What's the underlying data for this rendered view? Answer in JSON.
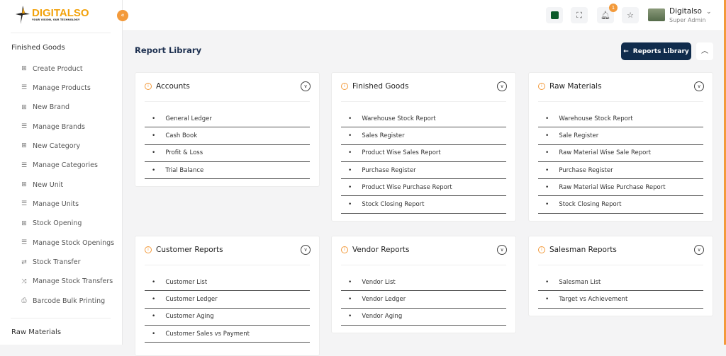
{
  "brand": {
    "name": "DIGITALSO",
    "tagline": "YOUR VISION, OUR TECHNOLOGY"
  },
  "sidebar": {
    "sections": [
      {
        "label": "Finished Goods"
      },
      {
        "label": "Raw Materials"
      }
    ],
    "items": [
      {
        "label": "Create Product",
        "icon": "plus-square-icon"
      },
      {
        "label": "Manage Products",
        "icon": "list-icon"
      },
      {
        "label": "New Brand",
        "icon": "plus-square-icon"
      },
      {
        "label": "Manage Brands",
        "icon": "list-icon"
      },
      {
        "label": "New Category",
        "icon": "plus-square-icon"
      },
      {
        "label": "Manage Categories",
        "icon": "list-icon"
      },
      {
        "label": "New Unit",
        "icon": "plus-square-icon"
      },
      {
        "label": "Manage Units",
        "icon": "list-icon"
      },
      {
        "label": "Stock Opening",
        "icon": "plus-square-icon"
      },
      {
        "label": "Manage Stock Openings",
        "icon": "list-icon"
      },
      {
        "label": "Stock Transfer",
        "icon": "repeat-icon"
      },
      {
        "label": "Manage Stock Transfers",
        "icon": "shuffle-icon"
      },
      {
        "label": "Barcode Bulk Printing",
        "icon": "printer-icon"
      }
    ]
  },
  "header": {
    "notifications": "1",
    "user_name": "Digitalso",
    "user_role": "Super Admin"
  },
  "page": {
    "title": "Report Library",
    "back_button": "Reports Library"
  },
  "cards": [
    {
      "title": "Accounts",
      "items": [
        "General Ledger",
        "Cash Book",
        "Profit & Loss",
        "Trial Balance"
      ]
    },
    {
      "title": "Finished Goods",
      "items": [
        "Warehouse Stock Report",
        "Sales Register",
        "Product Wise Sales Report",
        "Purchase Register",
        "Product Wise Purchase Report",
        "Stock Closing Report"
      ]
    },
    {
      "title": "Raw Materials",
      "items": [
        "Warehouse Stock Report",
        "Sale Register",
        "Raw Material Wise Sale Report",
        "Purchase Register",
        "Raw Material Wise Purchase Report",
        "Stock Closing Report"
      ]
    },
    {
      "title": "Customer Reports",
      "items": [
        "Customer List",
        "Customer Ledger",
        "Customer Aging",
        "Customer Sales vs Payment"
      ]
    },
    {
      "title": "Vendor Reports",
      "items": [
        "Vendor List",
        "Vendor Ledger",
        "Vendor Aging"
      ]
    },
    {
      "title": "Salesman Reports",
      "items": [
        "Salesman List",
        "Target vs Achievement"
      ]
    }
  ],
  "colors": {
    "accent": "#f39a3b",
    "primary": "#102c4c"
  }
}
